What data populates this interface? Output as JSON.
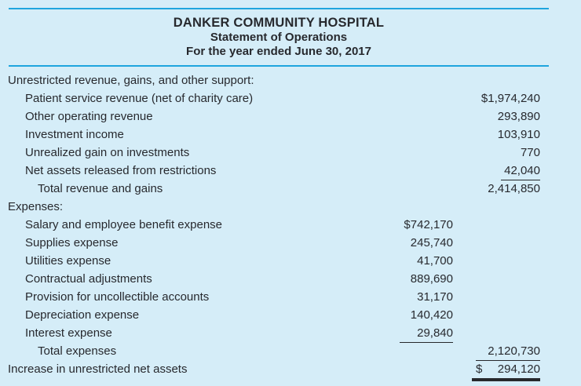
{
  "theme": {
    "background": "#d5edf8",
    "rule_color": "#1fa5de",
    "text_color": "#27292e",
    "total_line_color": "#26282c"
  },
  "header": {
    "title": "DANKER COMMUNITY HOSPITAL",
    "subtitle": "Statement of Operations",
    "period": "For the year ended June 30, 2017"
  },
  "statement": {
    "rows": [
      {
        "label": "Unrestricted revenue, gains, and other support:",
        "indent": 0
      },
      {
        "label": "Patient service revenue (net of charity care)",
        "indent": 1,
        "col2": "$1,974,240"
      },
      {
        "label": "Other operating revenue",
        "indent": 1,
        "col2": "293,890"
      },
      {
        "label": "Investment income",
        "indent": 1,
        "col2": "103,910"
      },
      {
        "label": "Unrealized gain on investments",
        "indent": 1,
        "col2": "770"
      },
      {
        "label": "Net assets released from restrictions",
        "indent": 1,
        "col2": "42,040",
        "col2_underline": "text"
      },
      {
        "label": "Total revenue and gains",
        "indent": 2,
        "col2": "2,414,850"
      },
      {
        "label": "Expenses:",
        "indent": 0
      },
      {
        "label": "Salary and employee benefit expense",
        "indent": 1,
        "col1": "$742,170"
      },
      {
        "label": "Supplies expense",
        "indent": 1,
        "col1": "245,740"
      },
      {
        "label": "Utilities expense",
        "indent": 1,
        "col1": "41,700"
      },
      {
        "label": "Contractual adjustments",
        "indent": 1,
        "col1": "889,690"
      },
      {
        "label": "Provision for uncollectible accounts",
        "indent": 1,
        "col1": "31,170"
      },
      {
        "label": "Depreciation expense",
        "indent": 1,
        "col1": "140,420"
      },
      {
        "label": "Interest expense",
        "indent": 1,
        "col1": "29,840",
        "col1_underline": "cell"
      },
      {
        "label": "Total expenses",
        "indent": 2,
        "col2": "2,120,730",
        "col2_underline": "cell"
      },
      {
        "label": "Increase in unrestricted net assets",
        "indent": 0,
        "col2_currency": "$",
        "col2": "294,120",
        "col2_underline": "double"
      }
    ]
  }
}
